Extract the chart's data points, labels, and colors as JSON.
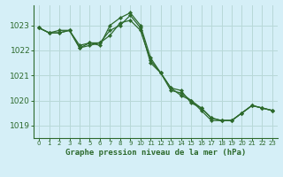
{
  "title": "Graphe pression niveau de la mer (hPa)",
  "background_color": "#d5eff7",
  "line_color": "#2d6a2d",
  "grid_color": "#b8d8d8",
  "ylim": [
    1018.5,
    1023.8
  ],
  "xlim": [
    -0.5,
    23.5
  ],
  "yticks": [
    1019,
    1020,
    1021,
    1022,
    1023
  ],
  "xticks": [
    0,
    1,
    2,
    3,
    4,
    5,
    6,
    7,
    8,
    9,
    10,
    11,
    12,
    13,
    14,
    15,
    16,
    17,
    18,
    19,
    20,
    21,
    22,
    23
  ],
  "series": [
    [
      1022.9,
      1022.7,
      1022.7,
      1022.8,
      1022.1,
      1022.2,
      1022.3,
      1022.6,
      1023.1,
      1023.2,
      1022.8,
      1021.6,
      1021.1,
      1020.5,
      1020.2,
      1020.0,
      1019.7,
      1019.3,
      1019.2,
      1019.2,
      1019.5,
      1019.8,
      1019.7,
      1019.6
    ],
    [
      1022.9,
      1022.7,
      1022.7,
      1022.8,
      1022.1,
      1022.3,
      1022.2,
      1023.0,
      1023.3,
      1023.5,
      1023.0,
      1021.7,
      1021.1,
      1020.5,
      1020.4,
      1019.9,
      1019.7,
      1019.3,
      1019.2,
      1019.2,
      1019.5,
      1019.8,
      1019.7,
      1019.6
    ],
    [
      1022.9,
      1022.7,
      1022.8,
      1022.8,
      1022.2,
      1022.3,
      1022.3,
      1022.8,
      1023.0,
      1023.4,
      1022.9,
      1021.5,
      1021.1,
      1020.4,
      1020.3,
      1020.0,
      1019.6,
      1019.2,
      1019.2,
      1019.2,
      1019.5,
      1019.8,
      1019.7,
      1019.6
    ]
  ]
}
